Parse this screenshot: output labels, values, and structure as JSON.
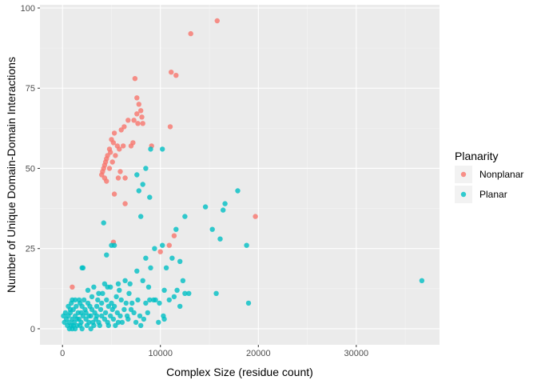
{
  "chart_data": {
    "type": "scatter",
    "xlabel": "Complex Size (residue count)",
    "ylabel": "Number of Unique Domain-Domain Interactions",
    "xlim": [
      -2300,
      38500
    ],
    "ylim": [
      -5,
      101
    ],
    "x_ticks": [
      0,
      10000,
      20000,
      30000
    ],
    "x_tick_labels": [
      "0",
      "10000",
      "20000",
      "30000"
    ],
    "y_ticks": [
      0,
      25,
      50,
      75,
      100
    ],
    "y_tick_labels": [
      "0",
      "25",
      "50",
      "75",
      "100"
    ],
    "grid": true,
    "legend": {
      "title": "Planarity",
      "placement": "right"
    },
    "series": [
      {
        "name": "Nonplanar",
        "color": "#F8766D",
        "points": [
          [
            15800,
            96
          ],
          [
            13100,
            92
          ],
          [
            11100,
            80
          ],
          [
            11600,
            79
          ],
          [
            7400,
            78
          ],
          [
            7600,
            72
          ],
          [
            7800,
            70
          ],
          [
            8000,
            68
          ],
          [
            7600,
            67
          ],
          [
            8100,
            66
          ],
          [
            7300,
            65
          ],
          [
            7700,
            64
          ],
          [
            8200,
            64
          ],
          [
            6300,
            63
          ],
          [
            6000,
            62
          ],
          [
            11000,
            63
          ],
          [
            6700,
            65
          ],
          [
            5300,
            61
          ],
          [
            5200,
            58
          ],
          [
            5000,
            59
          ],
          [
            5600,
            57
          ],
          [
            4800,
            56
          ],
          [
            4900,
            55
          ],
          [
            4600,
            54
          ],
          [
            4500,
            53
          ],
          [
            4400,
            52
          ],
          [
            4300,
            51
          ],
          [
            4200,
            50
          ],
          [
            4100,
            49
          ],
          [
            4000,
            48
          ],
          [
            4300,
            47
          ],
          [
            4500,
            46
          ],
          [
            4800,
            50
          ],
          [
            5100,
            52
          ],
          [
            5400,
            54
          ],
          [
            5800,
            56
          ],
          [
            6200,
            57
          ],
          [
            7200,
            58
          ],
          [
            7000,
            57
          ],
          [
            9100,
            57
          ],
          [
            5900,
            49
          ],
          [
            5700,
            47
          ],
          [
            6400,
            47
          ],
          [
            5300,
            42
          ],
          [
            6400,
            39
          ],
          [
            11400,
            29
          ],
          [
            10900,
            26
          ],
          [
            5200,
            27
          ],
          [
            10000,
            24
          ],
          [
            1000,
            13
          ],
          [
            19700,
            35
          ]
        ]
      },
      {
        "name": "Planar",
        "color": "#00BFC4",
        "points": [
          [
            36700,
            15
          ],
          [
            17900,
            43
          ],
          [
            16600,
            39
          ],
          [
            16400,
            37
          ],
          [
            14600,
            38
          ],
          [
            18800,
            26
          ],
          [
            16100,
            28
          ],
          [
            15300,
            31
          ],
          [
            15700,
            11
          ],
          [
            19000,
            8
          ],
          [
            12500,
            35
          ],
          [
            11600,
            31
          ],
          [
            10200,
            56
          ],
          [
            9000,
            56
          ],
          [
            8500,
            50
          ],
          [
            7600,
            48
          ],
          [
            8200,
            45
          ],
          [
            8900,
            41
          ],
          [
            7800,
            43
          ],
          [
            8000,
            35
          ],
          [
            4200,
            33
          ],
          [
            5300,
            26
          ],
          [
            5000,
            26
          ],
          [
            4500,
            23
          ],
          [
            10200,
            26
          ],
          [
            11200,
            22
          ],
          [
            9400,
            25
          ],
          [
            12000,
            21
          ],
          [
            12300,
            15
          ],
          [
            11700,
            12
          ],
          [
            12900,
            11
          ],
          [
            12500,
            11
          ],
          [
            10600,
            19
          ],
          [
            9000,
            19
          ],
          [
            8500,
            22
          ],
          [
            8800,
            13
          ],
          [
            8200,
            15
          ],
          [
            7600,
            18
          ],
          [
            6900,
            14
          ],
          [
            6400,
            15
          ],
          [
            5700,
            14
          ],
          [
            4300,
            14
          ],
          [
            4600,
            13
          ],
          [
            3700,
            11
          ],
          [
            3200,
            13
          ],
          [
            2600,
            12
          ],
          [
            2100,
            19
          ],
          [
            2000,
            19
          ],
          [
            9500,
            9
          ],
          [
            9900,
            8
          ],
          [
            10300,
            4
          ],
          [
            11400,
            10
          ],
          [
            10900,
            9
          ],
          [
            10400,
            12
          ],
          [
            12000,
            7
          ],
          [
            7700,
            9
          ],
          [
            8900,
            9
          ],
          [
            9300,
            9
          ],
          [
            6800,
            11
          ],
          [
            6000,
            9
          ],
          [
            5500,
            10
          ],
          [
            5000,
            8
          ],
          [
            4500,
            9
          ],
          [
            4000,
            8
          ],
          [
            3500,
            7
          ],
          [
            3000,
            6
          ],
          [
            2600,
            8
          ],
          [
            2200,
            9
          ],
          [
            1800,
            8
          ],
          [
            1400,
            7
          ],
          [
            1100,
            6
          ],
          [
            800,
            5
          ],
          [
            600,
            4
          ],
          [
            400,
            3
          ],
          [
            300,
            5
          ],
          [
            700,
            2
          ],
          [
            900,
            1
          ],
          [
            1200,
            2
          ],
          [
            1500,
            1
          ],
          [
            1700,
            3
          ],
          [
            1900,
            2
          ],
          [
            2100,
            4
          ],
          [
            2400,
            3
          ],
          [
            2700,
            2
          ],
          [
            2900,
            4
          ],
          [
            3100,
            2
          ],
          [
            3400,
            3
          ],
          [
            3700,
            2
          ],
          [
            4000,
            4
          ],
          [
            4300,
            3
          ],
          [
            4600,
            2
          ],
          [
            4900,
            4
          ],
          [
            5200,
            3
          ],
          [
            5600,
            5
          ],
          [
            5900,
            4
          ],
          [
            6300,
            6
          ],
          [
            6600,
            4
          ],
          [
            7000,
            6
          ],
          [
            7300,
            5
          ],
          [
            7900,
            4
          ],
          [
            8300,
            3
          ],
          [
            8700,
            5
          ],
          [
            9800,
            2
          ],
          [
            10400,
            3
          ],
          [
            6100,
            2
          ],
          [
            5400,
            1
          ],
          [
            3800,
            1
          ],
          [
            2500,
            1
          ],
          [
            1800,
            1
          ],
          [
            1300,
            0
          ],
          [
            1000,
            0
          ],
          [
            700,
            0
          ],
          [
            500,
            1
          ],
          [
            200,
            2
          ],
          [
            100,
            4
          ],
          [
            1600,
            5
          ],
          [
            1300,
            4
          ],
          [
            1000,
            3
          ],
          [
            2300,
            6
          ],
          [
            2800,
            7
          ],
          [
            3300,
            5
          ],
          [
            3900,
            6
          ],
          [
            4400,
            5
          ],
          [
            5100,
            6
          ],
          [
            900,
            8
          ],
          [
            1300,
            9
          ],
          [
            1700,
            9
          ],
          [
            2000,
            7
          ],
          [
            1500,
            3
          ],
          [
            1100,
            1
          ],
          [
            800,
            6
          ],
          [
            1900,
            5
          ],
          [
            2400,
            5
          ],
          [
            2700,
            4
          ],
          [
            3500,
            4
          ],
          [
            4700,
            7
          ],
          [
            5300,
            7
          ],
          [
            5700,
            2
          ],
          [
            6700,
            3
          ],
          [
            7500,
            2
          ],
          [
            8000,
            1
          ],
          [
            4700,
            1
          ],
          [
            3200,
            1
          ],
          [
            2900,
            0
          ],
          [
            2000,
            0
          ],
          [
            600,
            7
          ],
          [
            1000,
            9
          ],
          [
            3000,
            10
          ],
          [
            3600,
            9
          ],
          [
            4100,
            11
          ],
          [
            4900,
            13
          ],
          [
            5800,
            12
          ],
          [
            6500,
            8
          ],
          [
            7100,
            8
          ],
          [
            8500,
            8
          ]
        ]
      }
    ]
  }
}
